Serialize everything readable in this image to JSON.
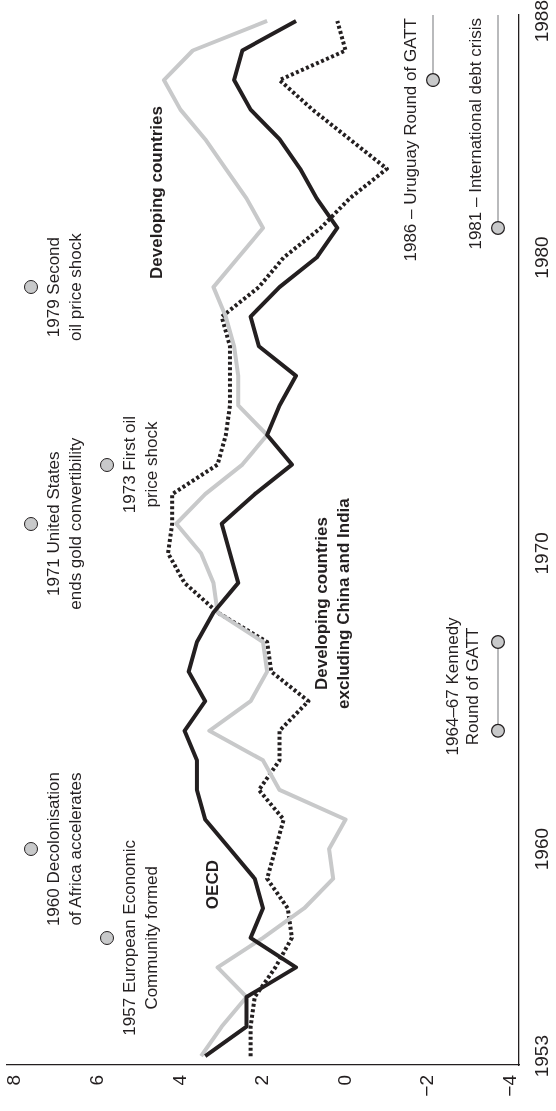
{
  "chart_data": {
    "type": "line",
    "xlim": [
      8.2,
      -4.2
    ],
    "xticks": [
      8,
      6,
      4,
      2,
      0,
      {
        "value": -2,
        "label": "−2"
      },
      {
        "value": -4,
        "label": "−4"
      }
    ],
    "ylim": [
      1952.7,
      1988.2
    ],
    "yticks": [
      1953,
      1960,
      1970,
      1980,
      1988
    ],
    "series": [
      {
        "name": "OECD",
        "color": "#231f20",
        "x": [
          3.4,
          2.4,
          2.4,
          1.2,
          2.3,
          2.0,
          2.2,
          2.8,
          3.4,
          3.6,
          3.6,
          3.9,
          3.4,
          3.8,
          3.6,
          3.2,
          2.6,
          2.8,
          3.0,
          2.2,
          1.3,
          1.9,
          1.6,
          1.2,
          2.1,
          2.3,
          1.6,
          0.7,
          0.2,
          0.7,
          1.1,
          1.6,
          2.3,
          2.7,
          2.5,
          1.2
        ],
        "values": [
          1953,
          1954,
          1955,
          1956,
          1957,
          1958,
          1959,
          1960,
          1961,
          1962,
          1963,
          1964,
          1965,
          1966,
          1967,
          1968,
          1969,
          1970,
          1971,
          1972,
          1973,
          1974,
          1975,
          1976,
          1977,
          1978,
          1979,
          1980,
          1981,
          1982,
          1983,
          1984,
          1985,
          1986,
          1987,
          1988
        ]
      },
      {
        "name": "Developing countries",
        "color": "#c8c9ca",
        "x": [
          3.5,
          3.0,
          2.4,
          3.1,
          2.0,
          1.0,
          0.3,
          0.4,
          0.0,
          1.6,
          2.0,
          3.3,
          2.3,
          1.9,
          2.0,
          3.1,
          3.2,
          3.5,
          4.1,
          3.4,
          2.5,
          1.9,
          2.6,
          2.6,
          2.7,
          2.9,
          3.2,
          2.6,
          2.0,
          2.4,
          2.9,
          3.4,
          4.0,
          4.4,
          3.7,
          1.9
        ],
        "values": [
          1953,
          1954,
          1955,
          1956,
          1957,
          1958,
          1959,
          1960,
          1961,
          1962,
          1963,
          1964,
          1965,
          1966,
          1967,
          1968,
          1969,
          1970,
          1971,
          1972,
          1973,
          1974,
          1975,
          1976,
          1977,
          1978,
          1979,
          1980,
          1981,
          1982,
          1983,
          1984,
          1985,
          1986,
          1987,
          1988
        ]
      },
      {
        "name": "Developing countries excluding China and India",
        "color": "#231f20",
        "line_style": "dotted",
        "x": [
          2.3,
          2.3,
          2.2,
          1.7,
          1.3,
          1.4,
          1.9,
          1.7,
          1.5,
          2.1,
          1.6,
          1.6,
          0.9,
          1.8,
          1.9,
          3.1,
          3.9,
          4.3,
          4.2,
          4.2,
          3.1,
          2.9,
          2.8,
          2.8,
          2.8,
          3.0,
          2.1,
          1.5,
          0.6,
          -0.1,
          -1.0,
          -0.1,
          0.8,
          1.6,
          0.0,
          0.2
        ],
        "values": [
          1953,
          1954,
          1955,
          1956,
          1957,
          1958,
          1959,
          1960,
          1961,
          1962,
          1963,
          1964,
          1965,
          1966,
          1967,
          1968,
          1969,
          1970,
          1971,
          1972,
          1973,
          1974,
          1975,
          1976,
          1977,
          1978,
          1979,
          1980,
          1981,
          1982,
          1983,
          1984,
          1985,
          1986,
          1987,
          1988
        ]
      }
    ],
    "annotations": [
      "1957 European Economic Community formed",
      "1960 Decolonisation of Africa accelerates",
      "1971 United States ends gold convertibility",
      "1973 First oil price shock",
      "1979 Second oil price shock",
      "1964–67 Kennedy Round of GATT",
      "1981 – International debt crisis",
      "1986 – Uruguay Round of GATT"
    ]
  }
}
